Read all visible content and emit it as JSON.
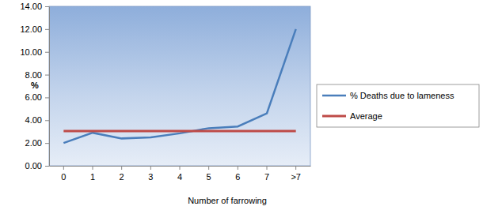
{
  "chart_data": {
    "type": "line",
    "x_label": "Number of farrowing",
    "y_label": "%",
    "categories": [
      "0",
      "1",
      "2",
      "3",
      "4",
      "5",
      "6",
      "7",
      ">7"
    ],
    "series": [
      {
        "name": "% Deaths due to lameness",
        "color": "#4a7ebb",
        "line_style": "solid",
        "values": [
          2.0,
          2.9,
          2.4,
          2.5,
          2.85,
          3.3,
          3.45,
          4.6,
          12.0
        ]
      },
      {
        "name": "Average",
        "color": "#be4b48",
        "line_style": "solid",
        "values": [
          3.05,
          3.05,
          3.05,
          3.05,
          3.05,
          3.05,
          3.05,
          3.05,
          3.05
        ]
      }
    ],
    "ylim": [
      0,
      14
    ],
    "yticks": [
      {
        "value": 0,
        "label": "0.00"
      },
      {
        "value": 2,
        "label": "2.00"
      },
      {
        "value": 4,
        "label": "4.00"
      },
      {
        "value": 6,
        "label": "6.00"
      },
      {
        "value": 8,
        "label": "8.00"
      },
      {
        "value": 10,
        "label": "10.00"
      },
      {
        "value": 12,
        "label": "12.00"
      },
      {
        "value": 14,
        "label": "14.00"
      }
    ],
    "grid": false,
    "legend": "right"
  }
}
